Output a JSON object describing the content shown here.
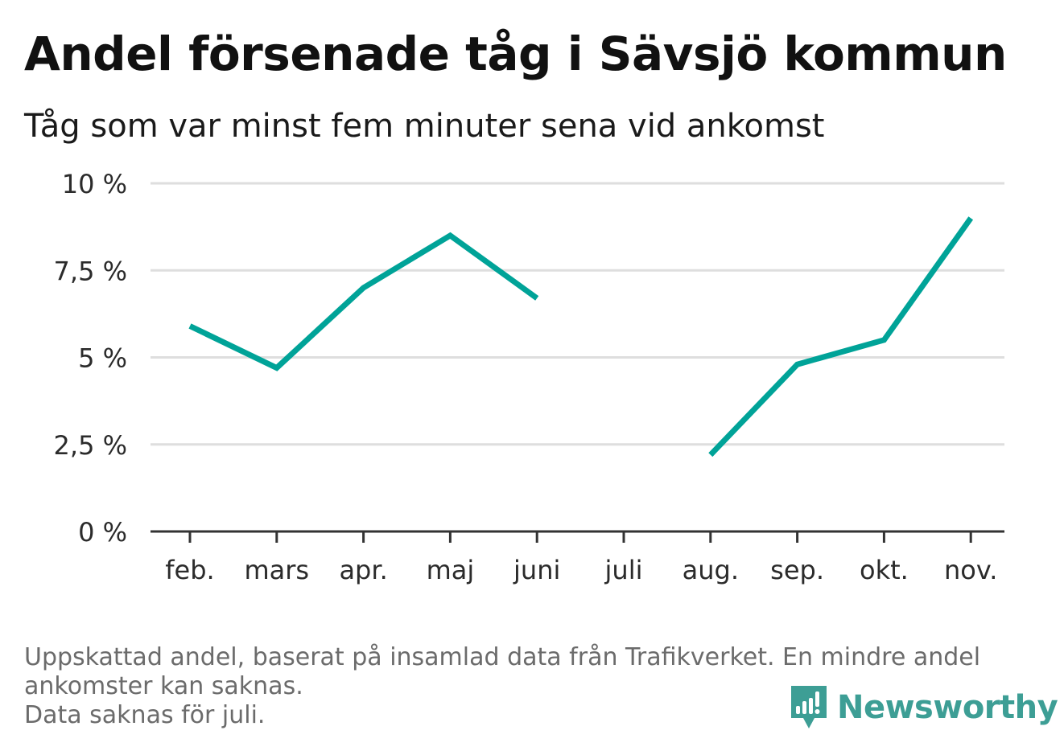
{
  "title": "Andel försenade tåg i Sävsjö kommun",
  "subtitle": "Tåg som var minst fem minuter sena vid ankomst",
  "chart_data": {
    "type": "line",
    "categories": [
      "feb.",
      "mars",
      "apr.",
      "maj",
      "juni",
      "juli",
      "aug.",
      "sep.",
      "okt.",
      "nov."
    ],
    "series": [
      {
        "values": [
          5.9,
          4.7,
          7.0,
          8.5,
          6.7,
          null,
          2.2,
          4.8,
          5.5,
          9.0
        ]
      }
    ],
    "yticks": [
      0,
      2.5,
      5,
      7.5,
      10
    ],
    "ytick_labels": [
      "0 %",
      "2,5 %",
      "5 %",
      "7,5 %",
      "10 %"
    ],
    "ylim": [
      0,
      10
    ],
    "grid": true,
    "color": "#00A398"
  },
  "footnote": {
    "line1": "Uppskattad andel, baserat på insamlad data från Trafikverket. En mindre andel",
    "line2": "ankomster kan saknas.",
    "line3": "Data saknas för juli."
  },
  "logo": {
    "text": "Newsworthy",
    "icon": "newsworthy-chart-icon",
    "color": "#3d9e95"
  }
}
